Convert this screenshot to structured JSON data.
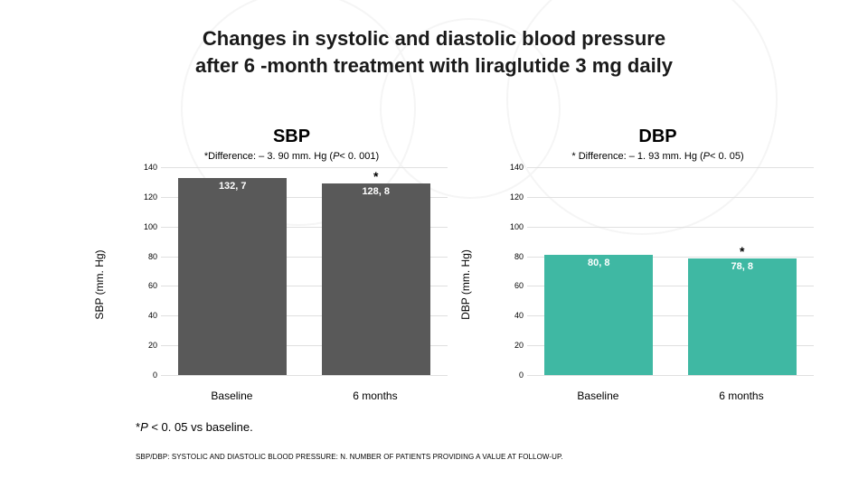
{
  "title_line1": "Changes in systolic and diastolic blood pressure",
  "title_line2": "after 6 -month treatment with liraglutide 3 mg daily",
  "title_fontsize": 22,
  "title_color": "#1a1a1a",
  "sbp": {
    "title": "SBP",
    "diff_prefix": "*Difference: – 3. 90 mm. Hg (",
    "diff_p": "P",
    "diff_suffix": "< 0. 001)",
    "ylabel": "SBP (mm. Hg)",
    "ymax": 140,
    "ytick_step": 20,
    "grid_color": "#e0e0e0",
    "bars": [
      {
        "category": "Baseline",
        "value": 132.7,
        "label": "132, 7",
        "color": "#595959",
        "star": false
      },
      {
        "category": "6 months",
        "value": 128.8,
        "label": "128, 8",
        "color": "#595959",
        "star": true
      }
    ]
  },
  "dbp": {
    "title": "DBP",
    "diff_prefix": "* Difference: – 1. 93 mm. Hg (",
    "diff_p": "P",
    "diff_suffix": "< 0. 05)",
    "ylabel": "DBP (mm. Hg)",
    "ymax": 140,
    "ytick_step": 20,
    "grid_color": "#e0e0e0",
    "bars": [
      {
        "category": "Baseline",
        "value": 80.8,
        "label": "80, 8",
        "color": "#3fb8a3",
        "star": false
      },
      {
        "category": "6 months",
        "value": 78.8,
        "label": "78, 8",
        "color": "#3fb8a3",
        "star": true
      }
    ]
  },
  "footnote_p_prefix": "*",
  "footnote_p_it": "P",
  "footnote_p_rest": " < 0. 05 vs baseline.",
  "footnote_abbr": "SBP/DBP: SYSTOLIC AND DIASTOLIC BLOOD PRESSURE: N. NUMBER OF PATIENTS PROVIDING A VALUE AT FOLLOW-UP."
}
